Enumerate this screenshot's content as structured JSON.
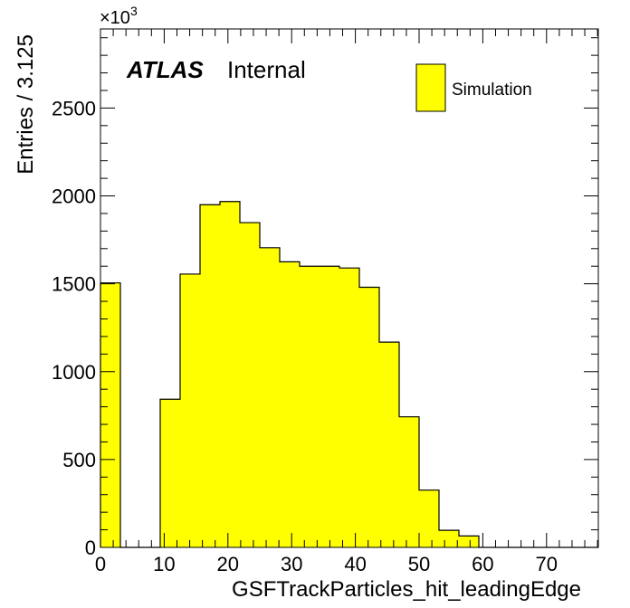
{
  "chart_data": {
    "type": "bar",
    "xlabel": "GSFTrackParticles_hit_leadingEdge",
    "ylabel": "Entries / 3.125",
    "xlim": [
      0,
      78.125
    ],
    "ylim": [
      0,
      2950
    ],
    "y_multiplier_base": "×10",
    "y_multiplier_exp": "3",
    "bin_width": 3.125,
    "bin_edges_start": 0,
    "values": [
      1505,
      0,
      0,
      843,
      1555,
      1950,
      1968,
      1848,
      1705,
      1625,
      1600,
      1600,
      1590,
      1480,
      1168,
      743,
      326,
      97,
      65,
      0,
      0,
      0,
      0,
      0,
      0
    ],
    "xticks": [
      "0",
      "10",
      "20",
      "30",
      "40",
      "50",
      "60",
      "70"
    ],
    "yticks": [
      "0",
      "500",
      "1000",
      "1500",
      "2000",
      "2500"
    ],
    "fill_color": "#ffff00",
    "line_color": "#000000",
    "legend": {
      "position": "top-right",
      "entries": [
        "Simulation"
      ]
    },
    "atlas_label": "ATLAS",
    "atlas_sublabel": "Internal"
  }
}
